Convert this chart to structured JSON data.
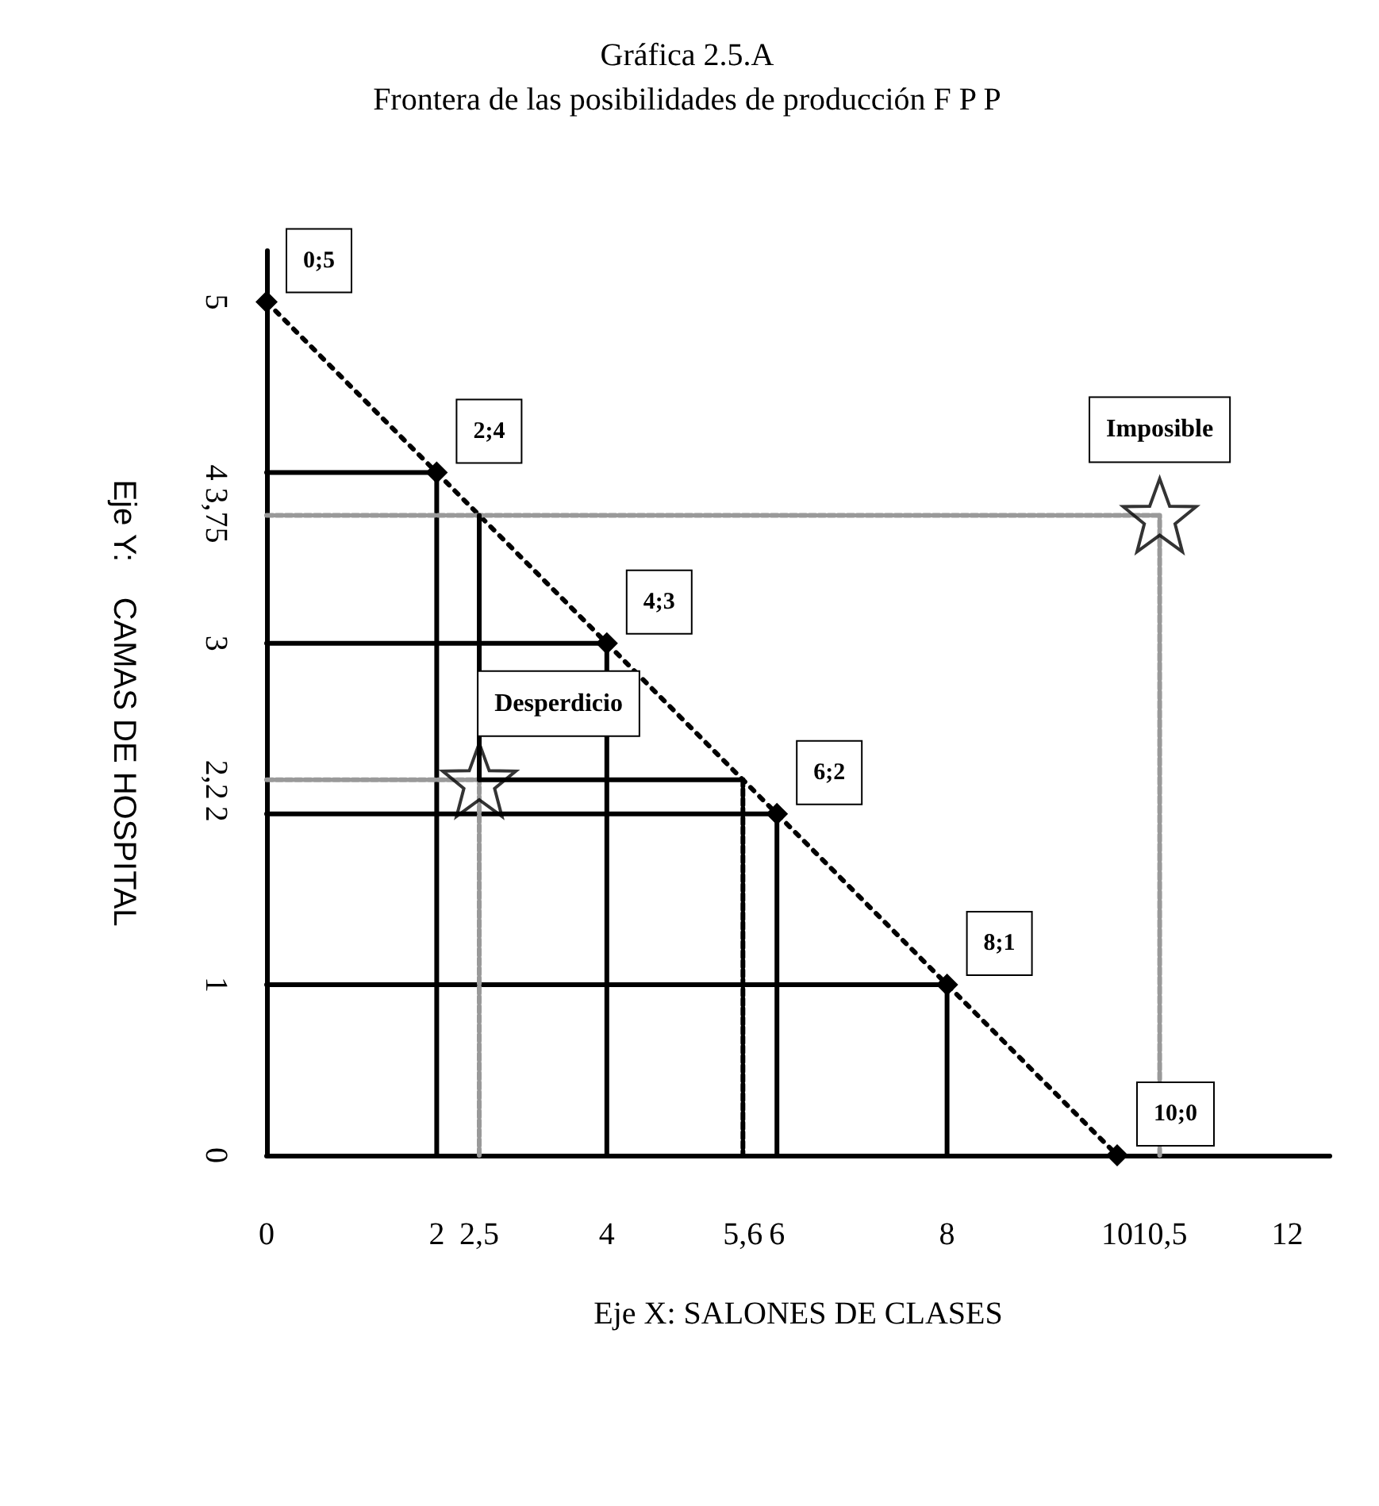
{
  "chart_data": {
    "type": "line",
    "title": "Gráfica 2.5.A",
    "subtitle": "Frontera de las posibilidades de producción F P P",
    "xlabel": "Eje X: SALONES DE CLASES",
    "ylabel": "Eje Y:    CAMAS DE HOSPITAL",
    "xlim": [
      0,
      12.5
    ],
    "xticks": [
      0,
      2,
      {
        "value": 2.5,
        "label": "2,5"
      },
      4,
      {
        "value": 5.6,
        "label": "5,6"
      },
      6,
      8,
      10,
      {
        "value": 10.5,
        "label": "10,5"
      },
      12
    ],
    "ylim": [
      0,
      5.3
    ],
    "yticks": [
      0,
      1,
      2,
      {
        "value": 2.2,
        "label": "2,2"
      },
      3,
      {
        "value": 3.75,
        "label": "3,75"
      },
      4,
      5
    ],
    "grid": false,
    "series": [
      {
        "type": "line",
        "x": [
          0,
          2,
          4,
          6,
          8,
          10
        ],
        "values": [
          5,
          4,
          3,
          2,
          1,
          0
        ],
        "color": "#000000",
        "marker": "diamond",
        "line_style": "dotted",
        "value_labels": [
          "0;5",
          "2;4",
          "4;3",
          "6;2",
          "8;1",
          "10;0"
        ]
      },
      {
        "x": [
          0,
          2,
          2
        ],
        "values": [
          4,
          4,
          0
        ],
        "color": "#000000",
        "marker": "none",
        "line_style": "solid"
      },
      {
        "x": [
          0,
          4,
          4
        ],
        "values": [
          3,
          3,
          0
        ],
        "color": "#000000",
        "marker": "none",
        "line_style": "solid"
      },
      {
        "x": [
          0,
          6,
          6
        ],
        "values": [
          2,
          2,
          0
        ],
        "color": "#000000",
        "marker": "none",
        "line_style": "solid"
      },
      {
        "x": [
          0,
          8,
          8
        ],
        "values": [
          1,
          1,
          0
        ],
        "color": "#000000",
        "marker": "none",
        "line_style": "solid"
      },
      {
        "x": [
          0,
          10.5
        ],
        "values": [
          3.75,
          3.75
        ],
        "color": "#999999",
        "marker": "none",
        "line_style": "dashed"
      },
      {
        "x": [
          0,
          2.5
        ],
        "values": [
          2.2,
          2.2
        ],
        "color": "#999999",
        "marker": "none",
        "line_style": "dashed"
      },
      {
        "x": [
          2.5,
          2.5
        ],
        "values": [
          0,
          2.2
        ],
        "color": "#999999",
        "marker": "none",
        "line_style": "dashed"
      },
      {
        "x": [
          10.5,
          10.5
        ],
        "values": [
          0,
          3.75
        ],
        "color": "#999999",
        "marker": "none",
        "line_style": "dashed"
      },
      {
        "x": [
          5.6,
          5.6
        ],
        "values": [
          2.2,
          0
        ],
        "color": "#000000",
        "marker": "none",
        "line_style": "dashed"
      },
      {
        "x": [
          2.5,
          2.5
        ],
        "values": [
          2.2,
          3.75
        ],
        "color": "#000000",
        "marker": "none",
        "line_style": "solid"
      },
      {
        "x": [
          2.5,
          5.6
        ],
        "values": [
          2.2,
          2.2
        ],
        "color": "#000000",
        "marker": "none",
        "line_style": "solid"
      },
      {
        "type": "scatter",
        "x": [
          2.5,
          10.5
        ],
        "values": [
          2.2,
          3.75
        ],
        "color": "#000000",
        "marker": "star"
      }
    ],
    "annotations": [
      {
        "text": "Desperdicio",
        "x": 2.5,
        "y": 2.2
      },
      {
        "text": "Imposible",
        "x": 10.5,
        "y": 3.75
      }
    ]
  }
}
